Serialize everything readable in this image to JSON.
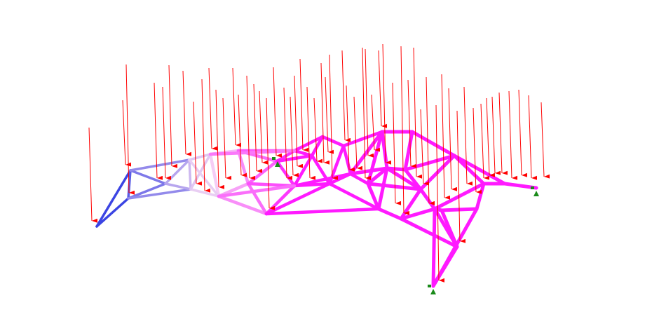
{
  "colors": {
    "background": "#ffffff",
    "load_arrow": "#ff0000",
    "support": "#1a8a1a",
    "member_low": "#1f2ee0",
    "member_mid": "#f4d6f4",
    "member_high": "#ff1aff"
  },
  "icons": {
    "load": "down-arrow-icon",
    "support": "pin-support-triangle-icon"
  }
}
